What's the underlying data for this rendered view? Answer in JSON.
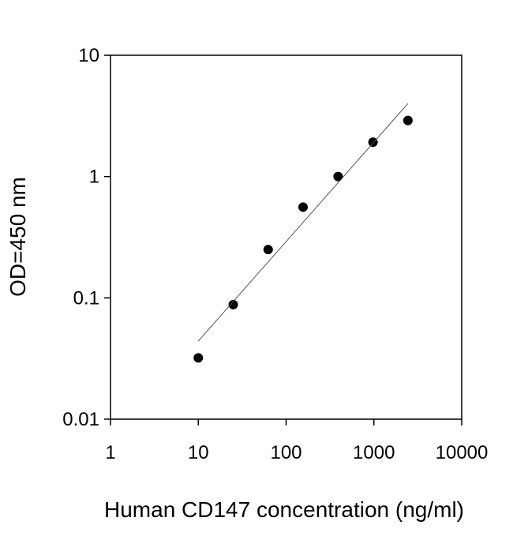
{
  "chart_data": {
    "type": "scatter",
    "x_label": "Human CD147 concentration (ng/ml)",
    "y_label": "OD=450 nm",
    "x_scale": "log",
    "y_scale": "log",
    "xlim": [
      1,
      10000
    ],
    "xticks": [
      1,
      10,
      100,
      1000,
      10000
    ],
    "ylim": [
      0.01,
      10
    ],
    "yticks": [
      0.01,
      0.1,
      1,
      10
    ],
    "series": [
      {
        "type": "scatter",
        "color": "#000000",
        "x": [
          10,
          25,
          62.5,
          156,
          391,
          977,
          2441
        ],
        "values": [
          0.032,
          0.088,
          0.25,
          0.56,
          1.0,
          1.92,
          2.9
        ]
      },
      {
        "type": "line",
        "color": "#555555",
        "x": [
          10,
          2441
        ],
        "values": [
          0.044,
          4.0
        ]
      }
    ]
  }
}
